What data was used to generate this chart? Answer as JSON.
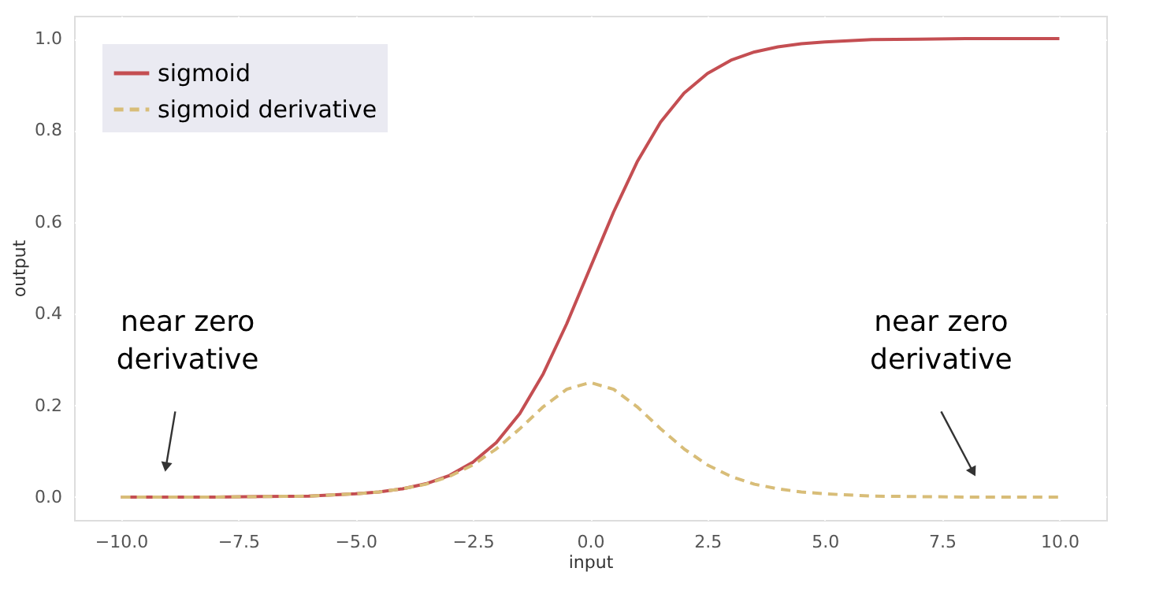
{
  "chart_data": {
    "type": "line",
    "xlabel": "input",
    "ylabel": "output",
    "x": [
      -10,
      -9,
      -8,
      -7,
      -6,
      -5,
      -4.5,
      -4,
      -3.5,
      -3,
      -2.5,
      -2,
      -1.5,
      -1,
      -0.5,
      0,
      0.5,
      1,
      1.5,
      2,
      2.5,
      3,
      3.5,
      4,
      4.5,
      5,
      6,
      7,
      8,
      9,
      10
    ],
    "series": [
      {
        "name": "sigmoid",
        "color": "#c44e52",
        "line_style": "solid",
        "values": [
          0.0,
          0.0,
          0.0,
          0.001,
          0.002,
          0.007,
          0.011,
          0.018,
          0.029,
          0.047,
          0.076,
          0.119,
          0.182,
          0.269,
          0.378,
          0.5,
          0.622,
          0.731,
          0.818,
          0.881,
          0.924,
          0.953,
          0.971,
          0.982,
          0.989,
          0.993,
          0.998,
          0.999,
          1.0,
          1.0,
          1.0
        ]
      },
      {
        "name": "sigmoid derivative",
        "color": "#d8bd78",
        "line_style": "dashed",
        "values": [
          0.0,
          0.0,
          0.0,
          0.001,
          0.002,
          0.007,
          0.011,
          0.018,
          0.028,
          0.045,
          0.07,
          0.105,
          0.149,
          0.197,
          0.235,
          0.25,
          0.235,
          0.197,
          0.149,
          0.105,
          0.07,
          0.045,
          0.028,
          0.018,
          0.011,
          0.007,
          0.002,
          0.001,
          0.0,
          0.0,
          0.0
        ]
      }
    ],
    "xlim": [
      -11,
      11
    ],
    "xticks": [
      {
        "value": -10,
        "label": "−10.0"
      },
      {
        "value": -7.5,
        "label": "−7.5"
      },
      {
        "value": -5,
        "label": "−5.0"
      },
      {
        "value": -2.5,
        "label": "−2.5"
      },
      {
        "value": 0,
        "label": "0.0"
      },
      {
        "value": 2.5,
        "label": "2.5"
      },
      {
        "value": 5,
        "label": "5.0"
      },
      {
        "value": 7.5,
        "label": "7.5"
      },
      {
        "value": 10,
        "label": "10.0"
      }
    ],
    "ylim": [
      -0.05,
      1.05
    ],
    "yticks": [
      {
        "value": 0,
        "label": "0.0"
      },
      {
        "value": 0.2,
        "label": "0.2"
      },
      {
        "value": 0.4,
        "label": "0.4"
      },
      {
        "value": 0.6,
        "label": "0.6"
      },
      {
        "value": 0.8,
        "label": "0.8"
      },
      {
        "value": 1,
        "label": "1.0"
      }
    ],
    "grid": true,
    "legend": "top left",
    "annotations": [
      "near zero\nderivative",
      "near zero\nderivative"
    ]
  }
}
